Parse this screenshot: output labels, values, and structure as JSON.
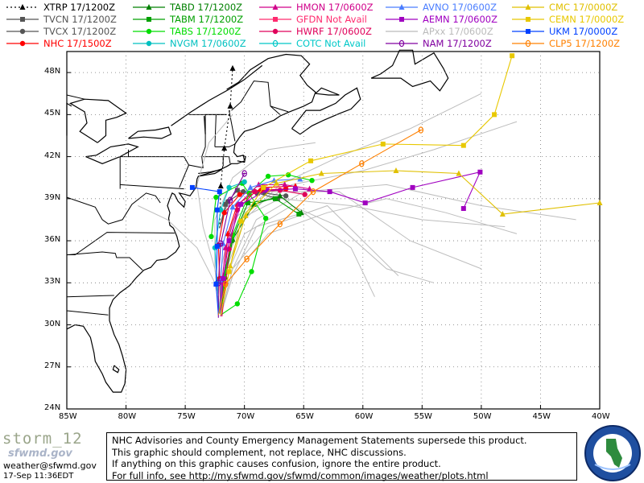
{
  "legend": [
    {
      "model": "XTRP",
      "time": "17/1200Z",
      "color": "#000000",
      "marker": "triangle",
      "dash": "2,3"
    },
    {
      "model": "TVCN",
      "time": "17/1200Z",
      "color": "#555555",
      "marker": "square",
      "dash": ""
    },
    {
      "model": "TVCX",
      "time": "17/1200Z",
      "color": "#555555",
      "marker": "circle",
      "dash": ""
    },
    {
      "model": "NHC",
      "time": "17/1500Z",
      "color": "#ff0000",
      "marker": "circle",
      "dash": ""
    },
    {
      "model": "TABD",
      "time": "17/1200Z",
      "color": "#008000",
      "marker": "triangle",
      "dash": ""
    },
    {
      "model": "TABM",
      "time": "17/1200Z",
      "color": "#00a000",
      "marker": "square",
      "dash": ""
    },
    {
      "model": "TABS",
      "time": "17/1200Z",
      "color": "#00dd00",
      "marker": "circle",
      "dash": ""
    },
    {
      "model": "NVGM",
      "time": "17/0600Z",
      "color": "#00c0c0",
      "marker": "circle",
      "dash": ""
    },
    {
      "model": "HMON",
      "time": "17/0600Z",
      "color": "#d0008a",
      "marker": "triangle",
      "dash": ""
    },
    {
      "model": "GFDN",
      "time": "Not Avail",
      "color": "#ff2a6e",
      "marker": "square",
      "dash": ""
    },
    {
      "model": "HWRF",
      "time": "17/0600Z",
      "color": "#e0005a",
      "marker": "circle",
      "dash": ""
    },
    {
      "model": "COTC",
      "time": "Not Avail",
      "color": "#00c8c8",
      "marker": "theta",
      "dash": ""
    },
    {
      "model": "AVNO",
      "time": "17/0600Z",
      "color": "#4a7dff",
      "marker": "triangle",
      "dash": ""
    },
    {
      "model": "AEMN",
      "time": "17/0600Z",
      "color": "#a000c0",
      "marker": "square",
      "dash": ""
    },
    {
      "model": "APxx",
      "time": "17/0600Z",
      "color": "#bbbbbb",
      "marker": "none",
      "dash": ""
    },
    {
      "model": "NAM",
      "time": "17/1200Z",
      "color": "#8000a0",
      "marker": "theta",
      "dash": ""
    },
    {
      "model": "CMC",
      "time": "17/0000Z",
      "color": "#e0c000",
      "marker": "triangle",
      "dash": ""
    },
    {
      "model": "CEMN",
      "time": "17/0000Z",
      "color": "#e8c800",
      "marker": "square",
      "dash": ""
    },
    {
      "model": "UKM",
      "time": "17/0000Z",
      "color": "#0040ff",
      "marker": "square",
      "dash": ""
    },
    {
      "model": "CLP5",
      "time": "17/1200Z",
      "color": "#ff8000",
      "marker": "theta",
      "dash": ""
    }
  ],
  "axes": {
    "lat_labels": [
      "48N",
      "45N",
      "42N",
      "39N",
      "36N",
      "33N",
      "30N",
      "27N",
      "24N"
    ],
    "lon_labels": [
      "85W",
      "80W",
      "75W",
      "70W",
      "65W",
      "60W",
      "55W",
      "50W",
      "45W",
      "40W"
    ],
    "lat_range": [
      24,
      49.5
    ],
    "lon_range": [
      -85,
      -40
    ]
  },
  "footer": {
    "storm": "storm_12",
    "org_mark": "sfwmd.gov",
    "email": "weather@sfwmd.gov",
    "timestamp": "17-Sep 11:36EDT",
    "disclaimer": [
      "NHC Advisories and County Emergency Management Statements supersede this product.",
      "This graphic should complement, not replace, NHC discussions.",
      "If anything on this graphic causes confusion, ignore the entire product.",
      "For full info, see  http://my.sfwmd.gov/sfwmd/common/images/weather/plots.html"
    ]
  },
  "tracks": [
    {
      "name": "XTRP",
      "color": "#000000",
      "marker": "triangle",
      "dash": "2,3",
      "pts": [
        [
          -72.1,
          36.9
        ],
        [
          -72.0,
          39.9
        ],
        [
          -71.7,
          42.6
        ],
        [
          -71.2,
          45.6
        ],
        [
          -71.0,
          48.3
        ]
      ]
    },
    {
      "name": "TVCN",
      "color": "#555555",
      "marker": "square",
      "dash": "",
      "pts": [
        [
          -72.1,
          36.9
        ],
        [
          -71.6,
          38.6
        ],
        [
          -70.6,
          39.6
        ],
        [
          -68.9,
          39.4
        ],
        [
          -67.2,
          39.0
        ]
      ]
    },
    {
      "name": "TVCX",
      "color": "#555555",
      "marker": "circle",
      "dash": "",
      "pts": [
        [
          -72.1,
          36.9
        ],
        [
          -71.4,
          38.8
        ],
        [
          -70.1,
          39.5
        ],
        [
          -68.3,
          39.4
        ],
        [
          -66.5,
          39.2
        ]
      ]
    },
    {
      "name": "NHC",
      "color": "#ff0000",
      "marker": "circle",
      "dash": "",
      "pts": [
        [
          -72.0,
          30.7
        ],
        [
          -72.1,
          33.3
        ],
        [
          -72.2,
          35.7
        ],
        [
          -71.7,
          38.0
        ],
        [
          -70.4,
          39.3
        ],
        [
          -68.6,
          39.6
        ],
        [
          -66.5,
          39.7
        ]
      ]
    },
    {
      "name": "NHC-b",
      "color": "#ff0000",
      "marker": "triangle",
      "dash": "",
      "pts": [
        [
          -72.0,
          30.7
        ],
        [
          -71.7,
          33.6
        ],
        [
          -71.4,
          36.5
        ],
        [
          -70.6,
          38.6
        ],
        [
          -68.5,
          39.8
        ],
        [
          -65.7,
          39.9
        ]
      ]
    },
    {
      "name": "TABD",
      "color": "#008000",
      "marker": "triangle",
      "dash": "",
      "pts": [
        [
          -72.0,
          30.7
        ],
        [
          -71.6,
          33.4
        ],
        [
          -71.0,
          36.1
        ],
        [
          -69.2,
          38.6
        ],
        [
          -67.0,
          39.2
        ],
        [
          -65.2,
          38.0
        ]
      ]
    },
    {
      "name": "TABM",
      "color": "#00a000",
      "marker": "square",
      "dash": "",
      "pts": [
        [
          -72.0,
          30.7
        ],
        [
          -71.8,
          33.2
        ],
        [
          -71.1,
          36.0
        ],
        [
          -69.7,
          38.7
        ],
        [
          -67.4,
          39.0
        ],
        [
          -65.4,
          37.9
        ]
      ]
    },
    {
      "name": "TABS",
      "color": "#00dd00",
      "marker": "circle",
      "dash": "",
      "pts": [
        [
          -72.0,
          30.7
        ],
        [
          -70.6,
          31.5
        ],
        [
          -69.4,
          33.8
        ],
        [
          -68.2,
          37.6
        ],
        [
          -70.2,
          40.1
        ],
        [
          -72.4,
          39.1
        ],
        [
          -72.8,
          36.3
        ]
      ]
    },
    {
      "name": "TABS-b",
      "color": "#00dd00",
      "marker": "circle",
      "dash": "",
      "pts": [
        [
          -72.0,
          30.7
        ],
        [
          -71.7,
          33.4
        ],
        [
          -71.0,
          36.4
        ],
        [
          -69.6,
          39.4
        ],
        [
          -68.0,
          40.6
        ],
        [
          -66.3,
          40.7
        ],
        [
          -64.3,
          40.3
        ]
      ]
    },
    {
      "name": "NVGM",
      "color": "#00c0c0",
      "marker": "circle",
      "dash": "",
      "pts": [
        [
          -72.1,
          30.8
        ],
        [
          -72.3,
          33.0
        ],
        [
          -72.5,
          35.5
        ],
        [
          -72.0,
          38.2
        ],
        [
          -71.3,
          39.8
        ],
        [
          -70.0,
          40.2
        ]
      ]
    },
    {
      "name": "HMON",
      "color": "#d0008a",
      "marker": "triangle",
      "dash": "",
      "pts": [
        [
          -72.0,
          30.6
        ],
        [
          -71.9,
          33.0
        ],
        [
          -71.6,
          35.5
        ],
        [
          -70.5,
          38.6
        ],
        [
          -68.8,
          40.0
        ],
        [
          -66.6,
          40.0
        ],
        [
          -64.5,
          39.7
        ]
      ]
    },
    {
      "name": "HWRF",
      "color": "#e0005a",
      "marker": "circle",
      "dash": "",
      "pts": [
        [
          -71.9,
          30.6
        ],
        [
          -71.6,
          32.9
        ],
        [
          -71.3,
          35.4
        ],
        [
          -70.6,
          38.2
        ],
        [
          -69.1,
          39.5
        ],
        [
          -67.0,
          39.6
        ],
        [
          -64.9,
          39.3
        ]
      ]
    },
    {
      "name": "AVNO",
      "color": "#4a7dff",
      "marker": "triangle",
      "dash": "",
      "pts": [
        [
          -72.0,
          30.7
        ],
        [
          -72.0,
          33.2
        ],
        [
          -71.8,
          35.8
        ],
        [
          -71.0,
          38.4
        ],
        [
          -69.5,
          39.8
        ],
        [
          -67.5,
          40.3
        ],
        [
          -65.3,
          40.4
        ]
      ]
    },
    {
      "name": "AEMN",
      "color": "#a000c0",
      "marker": "square",
      "dash": "",
      "pts": [
        [
          -72.0,
          30.7
        ],
        [
          -71.8,
          33.3
        ],
        [
          -71.3,
          36.0
        ],
        [
          -70.3,
          38.6
        ],
        [
          -68.1,
          39.6
        ],
        [
          -65.7,
          39.7
        ],
        [
          -62.8,
          39.5
        ],
        [
          -59.8,
          38.7
        ],
        [
          -55.8,
          39.8
        ],
        [
          -50.1,
          40.9
        ],
        [
          -51.5,
          38.3
        ]
      ]
    },
    {
      "name": "NAM",
      "color": "#8000a0",
      "marker": "theta",
      "dash": "",
      "pts": [
        [
          -72.2,
          30.5
        ],
        [
          -72.2,
          33.0
        ],
        [
          -72.0,
          35.8
        ],
        [
          -71.2,
          38.9
        ],
        [
          -70.0,
          40.8
        ]
      ]
    },
    {
      "name": "CMC",
      "color": "#e0c000",
      "marker": "triangle",
      "dash": "",
      "pts": [
        [
          -72.0,
          30.7
        ],
        [
          -71.2,
          34.2
        ],
        [
          -69.9,
          37.8
        ],
        [
          -67.3,
          40.1
        ],
        [
          -63.5,
          40.8
        ],
        [
          -57.2,
          41.0
        ],
        [
          -51.9,
          40.8
        ],
        [
          -48.2,
          37.9
        ],
        [
          -40.0,
          38.7
        ]
      ]
    },
    {
      "name": "CEMN",
      "color": "#e8c800",
      "marker": "square",
      "dash": "",
      "pts": [
        [
          -72.0,
          30.7
        ],
        [
          -71.3,
          33.8
        ],
        [
          -70.3,
          37.4
        ],
        [
          -68.4,
          39.8
        ],
        [
          -64.4,
          41.7
        ],
        [
          -58.3,
          42.9
        ],
        [
          -51.5,
          42.8
        ],
        [
          -48.9,
          45.0
        ],
        [
          -47.4,
          49.2
        ]
      ]
    },
    {
      "name": "UKM",
      "color": "#0040ff",
      "marker": "square",
      "dash": "",
      "pts": [
        [
          -72.2,
          30.7
        ],
        [
          -72.4,
          32.9
        ],
        [
          -72.3,
          35.6
        ],
        [
          -72.3,
          38.2
        ],
        [
          -72.1,
          39.5
        ],
        [
          -74.4,
          39.8
        ]
      ]
    },
    {
      "name": "CLP5",
      "color": "#ff8000",
      "marker": "theta",
      "dash": "",
      "pts": [
        [
          -72.2,
          30.7
        ],
        [
          -71.6,
          32.9
        ],
        [
          -69.8,
          34.7
        ],
        [
          -67.0,
          37.2
        ],
        [
          -64.2,
          39.5
        ],
        [
          -60.1,
          41.5
        ],
        [
          -55.1,
          43.9
        ]
      ]
    }
  ],
  "ensemble": [
    [
      [
        -72,
        30.7
      ],
      [
        -71,
        34
      ],
      [
        -69,
        37.5
      ],
      [
        -65,
        39.5
      ],
      [
        -58,
        40
      ],
      [
        -50,
        38.5
      ],
      [
        -42,
        37.5
      ]
    ],
    [
      [
        -72,
        30.7
      ],
      [
        -71.5,
        34.5
      ],
      [
        -70,
        38
      ],
      [
        -66,
        40
      ],
      [
        -60,
        41
      ],
      [
        -54,
        42.5
      ],
      [
        -47,
        44.5
      ]
    ],
    [
      [
        -72,
        30.7
      ],
      [
        -72.5,
        34
      ],
      [
        -73.5,
        37
      ],
      [
        -74,
        40
      ],
      [
        -73,
        43
      ],
      [
        -71,
        45
      ]
    ],
    [
      [
        -72,
        30.7
      ],
      [
        -71,
        34
      ],
      [
        -68,
        37
      ],
      [
        -63,
        38.5
      ],
      [
        -60,
        36
      ],
      [
        -57,
        33.5
      ]
    ],
    [
      [
        -72,
        30.7
      ],
      [
        -71.5,
        33.5
      ],
      [
        -70,
        36.5
      ],
      [
        -66,
        38.5
      ],
      [
        -62,
        37
      ],
      [
        -58,
        34
      ],
      [
        -54,
        33
      ]
    ],
    [
      [
        -72,
        30.7
      ],
      [
        -72,
        34
      ],
      [
        -71,
        37.5
      ],
      [
        -68,
        39.5
      ],
      [
        -62,
        39.5
      ],
      [
        -56,
        36
      ],
      [
        -50,
        34
      ]
    ],
    [
      [
        -72,
        30.7
      ],
      [
        -71,
        33.5
      ],
      [
        -68,
        36.5
      ],
      [
        -63,
        38
      ],
      [
        -58,
        39
      ],
      [
        -53,
        38
      ],
      [
        -47,
        36.5
      ]
    ],
    [
      [
        -72,
        30.7
      ],
      [
        -72.5,
        34
      ],
      [
        -72.5,
        37.5
      ],
      [
        -71,
        40.5
      ],
      [
        -68,
        42.5
      ],
      [
        -64,
        43
      ]
    ],
    [
      [
        -72,
        30.7
      ],
      [
        -71.5,
        34
      ],
      [
        -70,
        37.5
      ],
      [
        -67,
        40
      ],
      [
        -62,
        42
      ],
      [
        -56,
        44
      ],
      [
        -50,
        46.5
      ]
    ],
    [
      [
        -72,
        30.7
      ],
      [
        -71,
        33.5
      ],
      [
        -69,
        37
      ],
      [
        -65,
        38
      ],
      [
        -61,
        35.5
      ],
      [
        -59,
        32
      ]
    ],
    [
      [
        -72,
        30.7
      ],
      [
        -71.5,
        34
      ],
      [
        -70.5,
        37.5
      ],
      [
        -67,
        39
      ],
      [
        -61,
        38.5
      ],
      [
        -55,
        37.5
      ],
      [
        -48,
        37
      ]
    ],
    [
      [
        -72,
        30.7
      ],
      [
        -72.5,
        33
      ],
      [
        -74,
        35.5
      ],
      [
        -76.5,
        37.5
      ],
      [
        -79,
        38.5
      ]
    ]
  ]
}
